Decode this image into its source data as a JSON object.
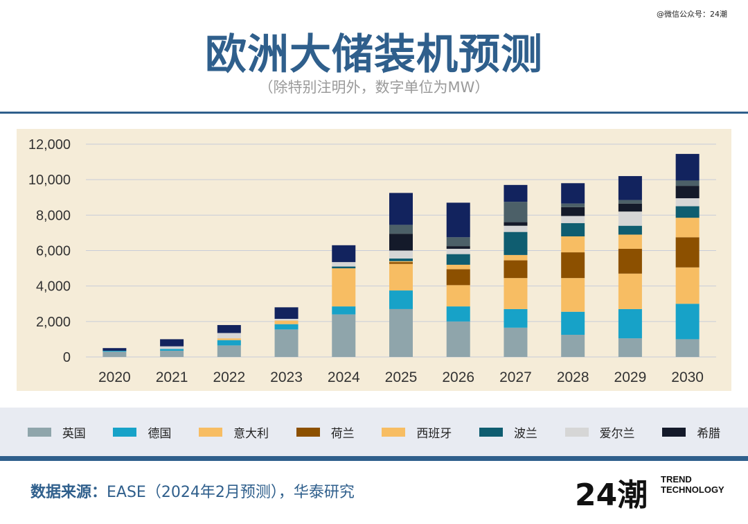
{
  "watermark": "@微信公众号：24潮",
  "header": {
    "title": "欧洲大储装机预测",
    "subtitle": "（除特别注明外，数字单位为MW）"
  },
  "source": {
    "label": "数据来源：",
    "text": "EASE（2024年2月预测），华泰研究"
  },
  "logo": {
    "mark": "24潮",
    "line1": "TREND",
    "line2": "TECHNOLOGY"
  },
  "chart_data": {
    "type": "bar",
    "stacked": true,
    "categories": [
      "2020",
      "2021",
      "2022",
      "2023",
      "2024",
      "2025",
      "2026",
      "2027",
      "2028",
      "2029",
      "2030"
    ],
    "ylim": [
      0,
      12000
    ],
    "yticks": [
      0,
      2000,
      4000,
      6000,
      8000,
      10000,
      12000
    ],
    "ytick_labels": [
      "0",
      "2,000",
      "4,000",
      "6,000",
      "8,000",
      "10,000",
      "12,000"
    ],
    "grid": true,
    "legend_position": "bottom",
    "series": [
      {
        "name": "英国",
        "color": "#8fa5ab",
        "values": [
          300,
          350,
          650,
          1550,
          2400,
          2700,
          2000,
          1650,
          1250,
          1050,
          1000
        ]
      },
      {
        "name": "德国",
        "color": "#17a2c8",
        "values": [
          50,
          100,
          300,
          300,
          450,
          1050,
          850,
          1050,
          1300,
          1650,
          2000
        ]
      },
      {
        "name": "意大利",
        "color": "#f7bd63",
        "values": [
          0,
          0,
          100,
          200,
          2150,
          1500,
          1200,
          1750,
          1900,
          2000,
          2050
        ]
      },
      {
        "name": "荷兰",
        "color": "#8c5000",
        "values": [
          0,
          0,
          0,
          0,
          0,
          100,
          900,
          1000,
          1450,
          1400,
          1700
        ]
      },
      {
        "name": "西班牙",
        "color": "#f7bd63",
        "values": [
          0,
          0,
          0,
          0,
          0,
          50,
          250,
          300,
          900,
          800,
          1100
        ]
      },
      {
        "name": "波兰",
        "color": "#0f5d70",
        "values": [
          0,
          0,
          0,
          0,
          100,
          150,
          600,
          1300,
          750,
          500,
          650
        ]
      },
      {
        "name": "爱尔兰",
        "color": "#d6d6d6",
        "values": [
          0,
          150,
          300,
          100,
          250,
          450,
          300,
          350,
          400,
          800,
          450
        ]
      },
      {
        "name": "希腊",
        "color": "#141a2a",
        "values": [
          0,
          0,
          0,
          0,
          0,
          950,
          150,
          200,
          500,
          450,
          700
        ]
      },
      {
        "name": "",
        "color": "#4c6068",
        "values": [
          0,
          0,
          0,
          0,
          0,
          500,
          500,
          1150,
          200,
          200,
          300
        ]
      },
      {
        "name": "",
        "color": "#12235e",
        "values": [
          150,
          400,
          450,
          650,
          950,
          1800,
          1950,
          950,
          1150,
          1350,
          1500
        ]
      }
    ]
  }
}
